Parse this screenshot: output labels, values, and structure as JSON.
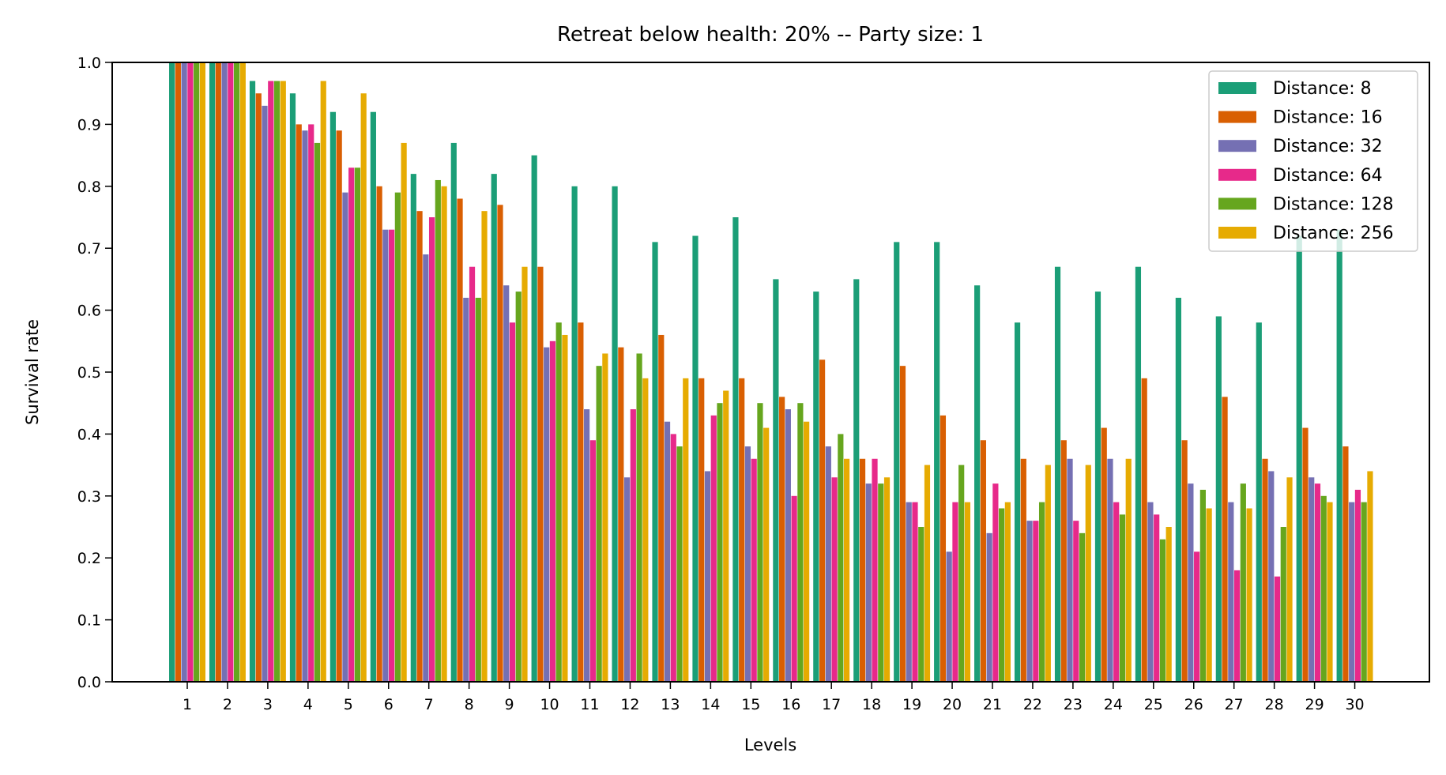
{
  "chart_data": {
    "type": "bar",
    "title": "Retreat below health: 20% -- Party size: 1",
    "xlabel": "Levels",
    "ylabel": "Survival rate",
    "ylim": [
      0,
      1.0
    ],
    "yticks": [
      "0.0",
      "0.1",
      "0.2",
      "0.3",
      "0.4",
      "0.5",
      "0.6",
      "0.7",
      "0.8",
      "0.9",
      "1.0"
    ],
    "grid": false,
    "legend_position": "top-right",
    "categories": [
      "1",
      "2",
      "3",
      "4",
      "5",
      "6",
      "7",
      "8",
      "9",
      "10",
      "11",
      "12",
      "13",
      "14",
      "15",
      "16",
      "17",
      "18",
      "19",
      "20",
      "21",
      "22",
      "23",
      "24",
      "25",
      "26",
      "27",
      "28",
      "29",
      "30"
    ],
    "series": [
      {
        "name": "Distance: 8",
        "color": "#1b9e77",
        "values": [
          1.0,
          1.0,
          0.97,
          0.95,
          0.92,
          0.92,
          0.82,
          0.87,
          0.82,
          0.85,
          0.8,
          0.8,
          0.71,
          0.72,
          0.75,
          0.65,
          0.63,
          0.65,
          0.71,
          0.71,
          0.64,
          0.58,
          0.67,
          0.63,
          0.67,
          0.62,
          0.59,
          0.58,
          0.72,
          0.73
        ]
      },
      {
        "name": "Distance: 16",
        "color": "#d95f02",
        "values": [
          1.0,
          1.0,
          0.95,
          0.9,
          0.89,
          0.8,
          0.76,
          0.78,
          0.77,
          0.67,
          0.58,
          0.54,
          0.56,
          0.49,
          0.49,
          0.46,
          0.52,
          0.36,
          0.51,
          0.43,
          0.39,
          0.36,
          0.39,
          0.41,
          0.49,
          0.39,
          0.46,
          0.36,
          0.41,
          0.38
        ]
      },
      {
        "name": "Distance: 32",
        "color": "#7570b3",
        "values": [
          1.0,
          1.0,
          0.93,
          0.89,
          0.79,
          0.73,
          0.69,
          0.62,
          0.64,
          0.54,
          0.44,
          0.33,
          0.42,
          0.34,
          0.38,
          0.44,
          0.38,
          0.32,
          0.29,
          0.21,
          0.24,
          0.26,
          0.36,
          0.36,
          0.29,
          0.32,
          0.29,
          0.34,
          0.33,
          0.29
        ]
      },
      {
        "name": "Distance: 64",
        "color": "#e7298a",
        "values": [
          1.0,
          1.0,
          0.97,
          0.9,
          0.83,
          0.73,
          0.75,
          0.67,
          0.58,
          0.55,
          0.39,
          0.44,
          0.4,
          0.43,
          0.36,
          0.3,
          0.33,
          0.36,
          0.29,
          0.29,
          0.32,
          0.26,
          0.26,
          0.29,
          0.27,
          0.21,
          0.18,
          0.17,
          0.32,
          0.31
        ]
      },
      {
        "name": "Distance: 128",
        "color": "#66a61e",
        "values": [
          1.0,
          1.0,
          0.97,
          0.87,
          0.83,
          0.79,
          0.81,
          0.62,
          0.63,
          0.58,
          0.51,
          0.53,
          0.38,
          0.45,
          0.45,
          0.45,
          0.4,
          0.32,
          0.25,
          0.35,
          0.28,
          0.29,
          0.24,
          0.27,
          0.23,
          0.31,
          0.32,
          0.25,
          0.3,
          0.29
        ]
      },
      {
        "name": "Distance: 256",
        "color": "#e6ab02",
        "values": [
          1.0,
          1.0,
          0.97,
          0.97,
          0.95,
          0.87,
          0.8,
          0.76,
          0.67,
          0.56,
          0.53,
          0.49,
          0.49,
          0.47,
          0.41,
          0.42,
          0.36,
          0.33,
          0.35,
          0.29,
          0.29,
          0.35,
          0.35,
          0.36,
          0.25,
          0.28,
          0.28,
          0.33,
          0.29,
          0.34
        ]
      }
    ]
  }
}
